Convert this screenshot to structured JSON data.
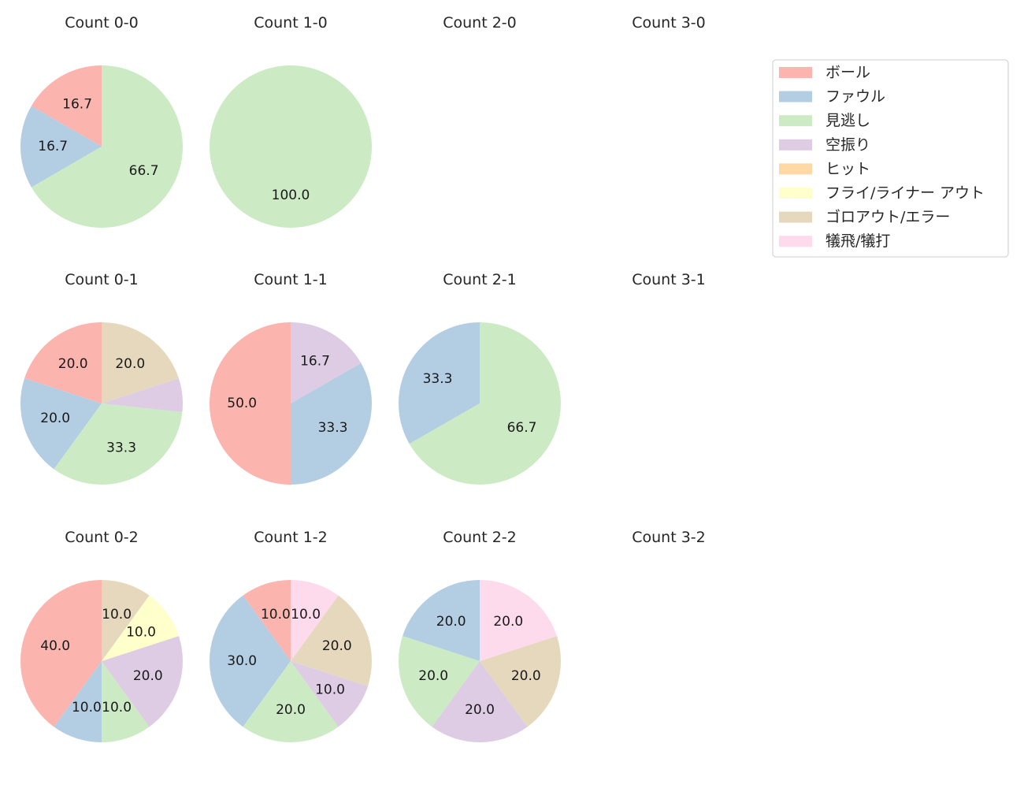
{
  "chart_data": {
    "type": "pie",
    "legend": {
      "placement": "top-right",
      "entries": [
        {
          "label": "ボール",
          "color": "#fbb4ae"
        },
        {
          "label": "ファウル",
          "color": "#b3cde3"
        },
        {
          "label": "見逃し",
          "color": "#ccebc5"
        },
        {
          "label": "空振り",
          "color": "#decbe4"
        },
        {
          "label": "ヒット",
          "color": "#fed9a6"
        },
        {
          "label": "フライ/ライナー アウト",
          "color": "#ffffcc"
        },
        {
          "label": "ゴロアウト/エラー",
          "color": "#e5d8bd"
        },
        {
          "label": "犠飛/犠打",
          "color": "#fddaec"
        }
      ]
    },
    "panels": [
      {
        "title": "Count 0-0",
        "slices": [
          {
            "category": "ボール",
            "value": 16.7,
            "label": "16.7"
          },
          {
            "category": "ファウル",
            "value": 16.7,
            "label": "16.7"
          },
          {
            "category": "見逃し",
            "value": 66.7,
            "label": "66.7"
          }
        ]
      },
      {
        "title": "Count 1-0",
        "slices": [
          {
            "category": "見逃し",
            "value": 100.0,
            "label": "100.0"
          }
        ]
      },
      {
        "title": "Count 2-0",
        "slices": []
      },
      {
        "title": "Count 3-0",
        "slices": []
      },
      {
        "title": "Count 0-1",
        "slices": [
          {
            "category": "ボール",
            "value": 20.0,
            "label": "20.0"
          },
          {
            "category": "ファウル",
            "value": 20.0,
            "label": "20.0"
          },
          {
            "category": "見逃し",
            "value": 33.3,
            "label": "33.3"
          },
          {
            "category": "空振り",
            "value": 6.7,
            "label": ""
          },
          {
            "category": "ゴロアウト/エラー",
            "value": 20.0,
            "label": "20.0"
          }
        ]
      },
      {
        "title": "Count 1-1",
        "slices": [
          {
            "category": "ボール",
            "value": 50.0,
            "label": "50.0"
          },
          {
            "category": "ファウル",
            "value": 33.3,
            "label": "33.3"
          },
          {
            "category": "空振り",
            "value": 16.7,
            "label": "16.7"
          }
        ]
      },
      {
        "title": "Count 2-1",
        "slices": [
          {
            "category": "ファウル",
            "value": 33.3,
            "label": "33.3"
          },
          {
            "category": "見逃し",
            "value": 66.7,
            "label": "66.7"
          }
        ]
      },
      {
        "title": "Count 3-1",
        "slices": []
      },
      {
        "title": "Count 0-2",
        "slices": [
          {
            "category": "ボール",
            "value": 40.0,
            "label": "40.0"
          },
          {
            "category": "ファウル",
            "value": 10.0,
            "label": "10.0"
          },
          {
            "category": "見逃し",
            "value": 10.0,
            "label": "10.0"
          },
          {
            "category": "空振り",
            "value": 20.0,
            "label": "20.0"
          },
          {
            "category": "フライ/ライナー アウト",
            "value": 10.0,
            "label": "10.0"
          },
          {
            "category": "ゴロアウト/エラー",
            "value": 10.0,
            "label": "10.0"
          }
        ]
      },
      {
        "title": "Count 1-2",
        "slices": [
          {
            "category": "ボール",
            "value": 10.0,
            "label": "10.0"
          },
          {
            "category": "ファウル",
            "value": 30.0,
            "label": "30.0"
          },
          {
            "category": "見逃し",
            "value": 20.0,
            "label": "20.0"
          },
          {
            "category": "空振り",
            "value": 10.0,
            "label": "10.0"
          },
          {
            "category": "ゴロアウト/エラー",
            "value": 20.0,
            "label": "20.0"
          },
          {
            "category": "犠飛/犠打",
            "value": 10.0,
            "label": "10.0"
          }
        ]
      },
      {
        "title": "Count 2-2",
        "slices": [
          {
            "category": "ファウル",
            "value": 20.0,
            "label": "20.0"
          },
          {
            "category": "見逃し",
            "value": 20.0,
            "label": "20.0"
          },
          {
            "category": "空振り",
            "value": 20.0,
            "label": "20.0"
          },
          {
            "category": "ゴロアウト/エラー",
            "value": 20.0,
            "label": "20.0"
          },
          {
            "category": "犠飛/犠打",
            "value": 20.0,
            "label": "20.0"
          }
        ]
      },
      {
        "title": "Count 3-2",
        "slices": []
      }
    ]
  }
}
